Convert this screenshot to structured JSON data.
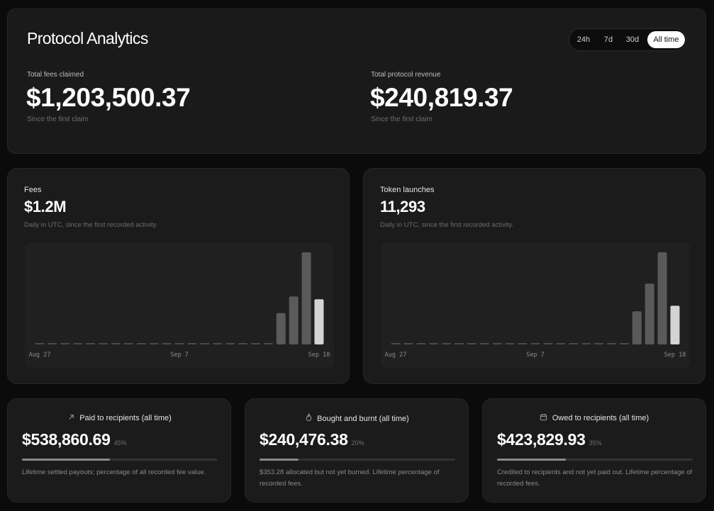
{
  "header": {
    "title": "Protocol Analytics",
    "ranges": [
      "24h",
      "7d",
      "30d",
      "All time"
    ],
    "active_range": "All time",
    "stats": [
      {
        "label": "Total fees claimed",
        "value": "$1,203,500.37",
        "sub": "Since the first claim"
      },
      {
        "label": "Total protocol revenue",
        "value": "$240,819.37",
        "sub": "Since the first claim"
      }
    ]
  },
  "charts": [
    {
      "title": "Fees",
      "value": "$1.2M",
      "sub": "Daily in UTC, since the first recorded activity.",
      "chart_data": {
        "type": "bar",
        "categories": [
          "Aug 27",
          "Aug 28",
          "Aug 29",
          "Aug 30",
          "Aug 31",
          "Sep 1",
          "Sep 2",
          "Sep 3",
          "Sep 4",
          "Sep 5",
          "Sep 6",
          "Sep 7",
          "Sep 8",
          "Sep 9",
          "Sep 10",
          "Sep 11",
          "Sep 12",
          "Sep 13",
          "Sep 14",
          "Sep 15",
          "Sep 16",
          "Sep 17",
          "Sep 18"
        ],
        "values": [
          0,
          0,
          0,
          0,
          0,
          0,
          0,
          0,
          0,
          0,
          0,
          0,
          0,
          0,
          0,
          0,
          0,
          0,
          0,
          0.34,
          0.52,
          1.0,
          0.49
        ],
        "highlight_index": 22,
        "tick_labels": [
          "Aug 27",
          "Sep 7",
          "Sep 18"
        ],
        "tick_indices": [
          0,
          11,
          22
        ]
      }
    },
    {
      "title": "Token launches",
      "value": "11,293",
      "sub": "Daily in UTC, since the first recorded activity.",
      "chart_data": {
        "type": "bar",
        "categories": [
          "Aug 27",
          "Aug 28",
          "Aug 29",
          "Aug 30",
          "Aug 31",
          "Sep 1",
          "Sep 2",
          "Sep 3",
          "Sep 4",
          "Sep 5",
          "Sep 6",
          "Sep 7",
          "Sep 8",
          "Sep 9",
          "Sep 10",
          "Sep 11",
          "Sep 12",
          "Sep 13",
          "Sep 14",
          "Sep 15",
          "Sep 16",
          "Sep 17",
          "Sep 18"
        ],
        "values": [
          0,
          0,
          0,
          0,
          0,
          0,
          0,
          0,
          0,
          0,
          0,
          0,
          0,
          0,
          0,
          0,
          0,
          0,
          0,
          0.36,
          0.66,
          1.0,
          0.42
        ],
        "highlight_index": 22,
        "tick_labels": [
          "Aug 27",
          "Sep 7",
          "Sep 18"
        ],
        "tick_indices": [
          0,
          11,
          22
        ]
      }
    }
  ],
  "summary": [
    {
      "icon": "arrow-up-right-icon",
      "title": "Paid to recipients (all time)",
      "value": "$538,860.69",
      "pct": "45%",
      "fraction": 0.45,
      "desc": "Lifetime settled payouts; percentage of all recorded fee value."
    },
    {
      "icon": "flame-icon",
      "title": "Bought and burnt (all time)",
      "value": "$240,476.38",
      "pct": "20%",
      "fraction": 0.2,
      "desc": "$353.28 allocated but not yet burned. Lifetime percentage of recorded fees."
    },
    {
      "icon": "calendar-icon",
      "title": "Owed to recipients (all time)",
      "value": "$423,829.93",
      "pct": "35%",
      "fraction": 0.35,
      "desc": "Credited to recipients and not yet paid out. Lifetime percentage of recorded fees."
    }
  ],
  "colors": {
    "background": "#0b0b0b",
    "card": "#1b1b1b",
    "bar": "#5a5a5a",
    "bar_highlight": "#d4d4d4",
    "bar_zero": "#4a4a4a"
  }
}
